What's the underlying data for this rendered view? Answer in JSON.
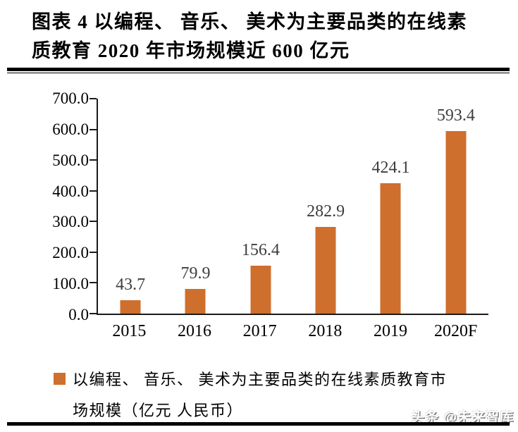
{
  "figure": {
    "title_line1": "图表 4 以编程、 音乐、 美术为主要品类的在线素",
    "title_line2": "质教育 2020 年市场规模近 600 亿元"
  },
  "chart_data": {
    "type": "bar",
    "title": "以编程、音乐、美术为主要品类的在线素质教育2020年市场规模近600亿元",
    "categories": [
      "2015",
      "2016",
      "2017",
      "2018",
      "2019",
      "2020F"
    ],
    "values": [
      43.7,
      79.9,
      156.4,
      282.9,
      424.1,
      593.4
    ],
    "value_labels": [
      "43.7",
      "79.9",
      "156.4",
      "282.9",
      "424.1",
      "593.4"
    ],
    "y_tick_labels": [
      "700.0",
      "600.0",
      "500.0",
      "400.0",
      "300.0",
      "200.0",
      "100.0",
      "0.0"
    ],
    "ylim": [
      0,
      700
    ],
    "y_step": 100,
    "xlabel": "",
    "ylabel": "",
    "grid": false,
    "legend_position": "bottom",
    "bar_color": "#cf6f2d"
  },
  "legend": {
    "swatch_color": "#cf6f2d",
    "line1": "以编程、 音乐、 美术为主要品类的在线素质教育市",
    "line2": "场规模（亿元 人民币）"
  },
  "watermark": "头条 @未来智库",
  "colors": {
    "bar": "#cf6f2d",
    "value_label": "#3d3d3d",
    "axis": "#1a1a1a",
    "text": "#000000"
  }
}
